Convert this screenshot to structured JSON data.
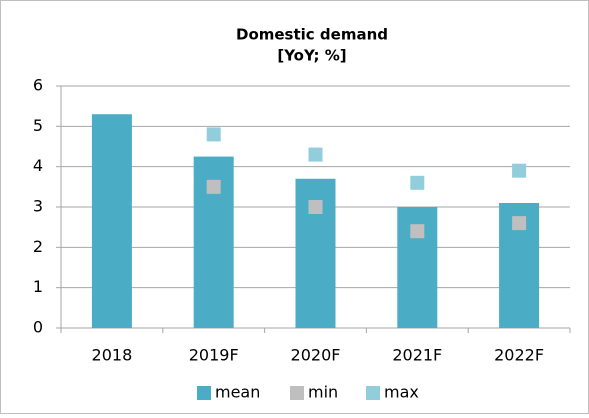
{
  "chart_data": {
    "type": "bar",
    "title": "Domestic demand",
    "subtitle": "[YoY; %]",
    "categories": [
      "2018",
      "2019F",
      "2020F",
      "2021F",
      "2022F"
    ],
    "series": [
      {
        "name": "mean",
        "type": "bar",
        "color": "#4bacc6",
        "values": [
          5.3,
          4.25,
          3.7,
          3.0,
          3.1
        ]
      },
      {
        "name": "min",
        "type": "scatter",
        "color": "#bfbfbf",
        "values": [
          null,
          3.5,
          3.0,
          2.4,
          2.6
        ]
      },
      {
        "name": "max",
        "type": "scatter",
        "color": "#92cddc",
        "values": [
          null,
          4.8,
          4.3,
          3.6,
          3.9
        ]
      }
    ],
    "ylim": [
      0,
      6
    ],
    "yticks": [
      0,
      1,
      2,
      3,
      4,
      5,
      6
    ],
    "grid": true,
    "legend": "bottom"
  }
}
